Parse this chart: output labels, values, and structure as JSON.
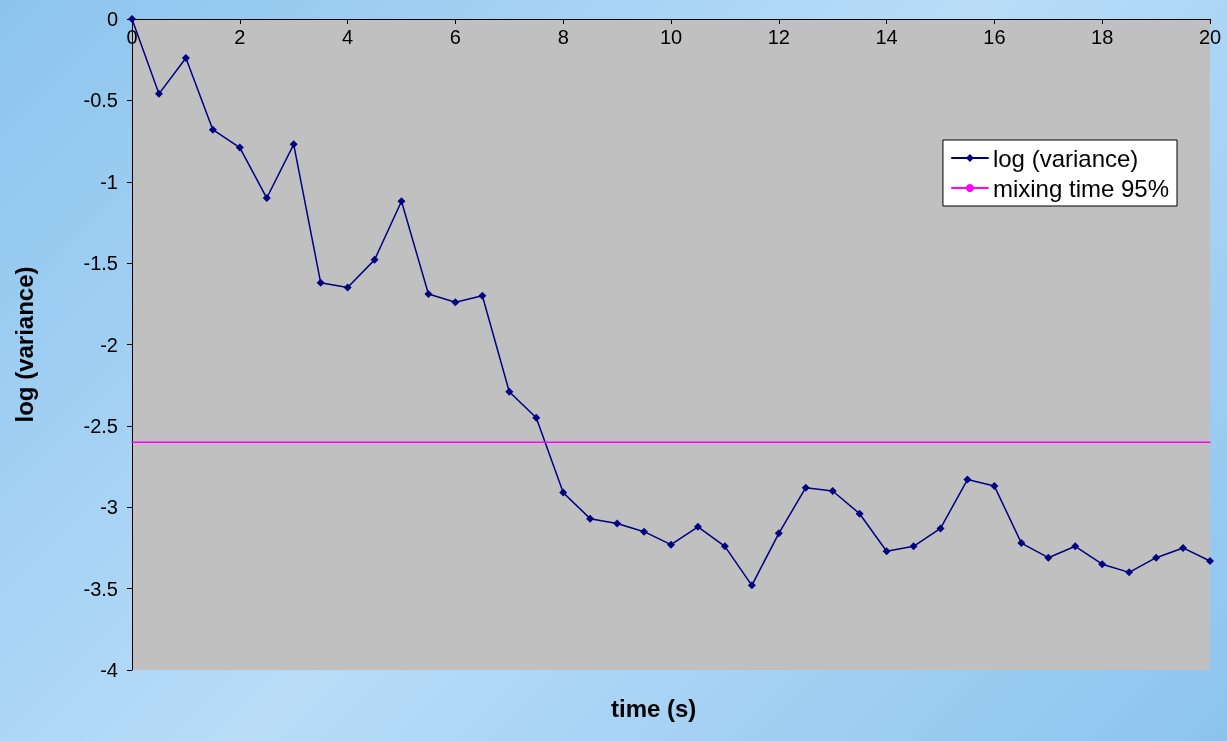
{
  "chart_data": {
    "type": "line",
    "xlabel": "time (s)",
    "ylabel": "log (variance)",
    "xlim": [
      0,
      20
    ],
    "xticks": [
      0,
      2,
      4,
      6,
      8,
      10,
      12,
      14,
      16,
      18,
      20
    ],
    "ylim": [
      -4,
      0
    ],
    "yticks": [
      -4,
      -3.5,
      -3,
      -2.5,
      -2,
      -1.5,
      -1,
      -0.5,
      0
    ],
    "grid": false,
    "legend": "top right",
    "marker": "diamond",
    "line_style": "solid",
    "series": [
      {
        "name": "log (variance)",
        "color": "#000080",
        "x": [
          0,
          0.5,
          1,
          1.5,
          2,
          2.5,
          3,
          3.5,
          4,
          4.5,
          5,
          5.5,
          6,
          6.5,
          7,
          7.5,
          8,
          8.5,
          9,
          9.5,
          10,
          10.5,
          11,
          11.5,
          12,
          12.5,
          13,
          13.5,
          14,
          14.5,
          15,
          15.5,
          16,
          16.5,
          17,
          17.5,
          18,
          18.5,
          19,
          19.5,
          20
        ],
        "values": [
          0,
          -0.46,
          -0.24,
          -0.68,
          -0.79,
          -1.1,
          -0.77,
          -1.62,
          -1.65,
          -1.48,
          -1.12,
          -1.69,
          -1.74,
          -1.7,
          -2.29,
          -2.45,
          -2.91,
          -3.07,
          -3.1,
          -3.15,
          -3.23,
          -3.12,
          -3.24,
          -3.48,
          -3.16,
          -2.88,
          -2.9,
          -3.04,
          -3.27,
          -3.24,
          -3.13,
          -2.83,
          -2.87,
          -3.22,
          -3.31,
          -3.24,
          -3.35,
          -3.4,
          -3.31,
          -3.25,
          -3.33
        ]
      },
      {
        "name": "mixing time 95%",
        "color": "#ff00ff",
        "marker": "none",
        "x": [
          0,
          20
        ],
        "values": [
          -2.6,
          -2.6
        ]
      }
    ]
  }
}
